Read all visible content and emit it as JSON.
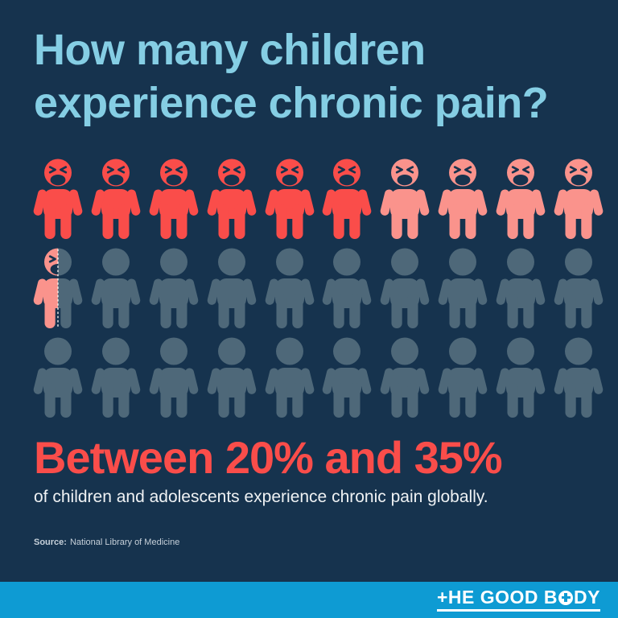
{
  "theme": {
    "background": "#16334E",
    "title_color": "#85CEE4",
    "accent_red": "#FA4D4A",
    "accent_salmon": "#FA938C",
    "muted_slate": "#4E6879",
    "footer_blue": "#0E9BD3",
    "body_text_color": "#EFF2F4",
    "source_text_color": "#C6D0D9"
  },
  "title": {
    "lines": [
      "How many children",
      "experience chronic pain?"
    ]
  },
  "pictogram": {
    "divider_dash_color": "#F6EFEC",
    "states": {
      "affected": {
        "color": "#FA4D4A",
        "face": true
      },
      "affected_light": {
        "color": "#FA938C",
        "face": true
      },
      "unaffected": {
        "color": "#4E6879",
        "face": false
      }
    },
    "rows": [
      [
        "affected",
        "affected",
        "affected",
        "affected",
        "affected",
        "affected",
        "affected_light",
        "affected_light",
        "affected_light",
        "affected_light"
      ],
      [
        "half",
        "unaffected",
        "unaffected",
        "unaffected",
        "unaffected",
        "unaffected",
        "unaffected",
        "unaffected",
        "unaffected",
        "unaffected"
      ],
      [
        "unaffected",
        "unaffected",
        "unaffected",
        "unaffected",
        "unaffected",
        "unaffected",
        "unaffected",
        "unaffected",
        "unaffected",
        "unaffected"
      ]
    ]
  },
  "statement": {
    "headline": "Between 20% and 35%",
    "body": "of children and adolescents experience chronic pain globally."
  },
  "source": {
    "label": "Source:",
    "text": "National Library of Medicine"
  },
  "footer": {
    "logo": {
      "prefix": "+HE GOOD B",
      "suffix": "DY"
    }
  },
  "chart_data": {
    "type": "pictogram",
    "title": "How many children experience chronic pain?",
    "total_units": 30,
    "unit_percent": 3.33,
    "series": [
      {
        "name": "Children who experience chronic pain (lower bound, 20%)",
        "units": 6,
        "color": "#FA4D4A"
      },
      {
        "name": "Additional children up to upper bound (35%)",
        "units": 4.5,
        "color": "#FA938C"
      },
      {
        "name": "Children who do not experience chronic pain",
        "units": 19.5,
        "color": "#4E6879"
      }
    ],
    "annotation": "Between 20% and 35% of children and adolescents experience chronic pain globally.",
    "legend_position": "none",
    "grid": false
  }
}
